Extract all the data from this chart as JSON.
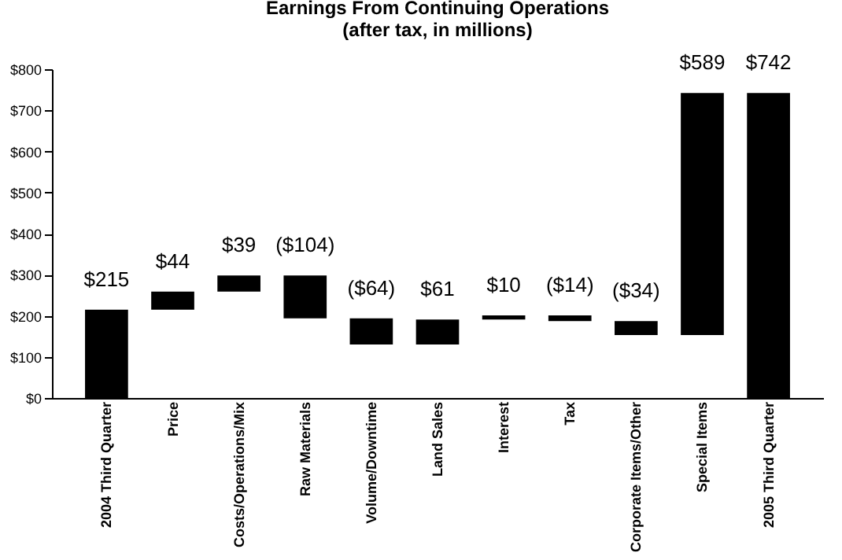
{
  "chart_data": {
    "type": "bar",
    "title": "Earnings From Continuing Operations",
    "subtitle": "(after tax, in millions)",
    "categories": [
      "2004 Third Quarter",
      "Price",
      "Costs/Operations/Mix",
      "Raw Materials",
      "Volume/Downtime",
      "Land Sales",
      "Interest",
      "Tax",
      "Corporate Items/Other",
      "Special Items",
      "2005 Third Quarter"
    ],
    "values": [
      215,
      44,
      39,
      -104,
      -64,
      61,
      10,
      -14,
      -34,
      589,
      742
    ],
    "base": [
      0,
      215,
      259,
      298,
      194,
      130,
      191,
      201,
      187,
      153,
      0
    ],
    "value_labels": [
      "$215",
      "$44",
      "$39",
      "($104)",
      "($64)",
      "$61",
      "$10",
      "($14)",
      "($34)",
      "$589",
      "$742"
    ],
    "color": "#000000",
    "ylim": [
      0,
      800
    ],
    "yticks": [
      {
        "value": 0,
        "label": "$0"
      },
      {
        "value": 100,
        "label": "$100"
      },
      {
        "value": 200,
        "label": "$200"
      },
      {
        "value": 300,
        "label": "$300"
      },
      {
        "value": 400,
        "label": "$400"
      },
      {
        "value": 500,
        "label": "$500"
      },
      {
        "value": 600,
        "label": "$600"
      },
      {
        "value": 700,
        "label": "$700"
      },
      {
        "value": 800,
        "label": "$800"
      }
    ],
    "grid": false
  }
}
